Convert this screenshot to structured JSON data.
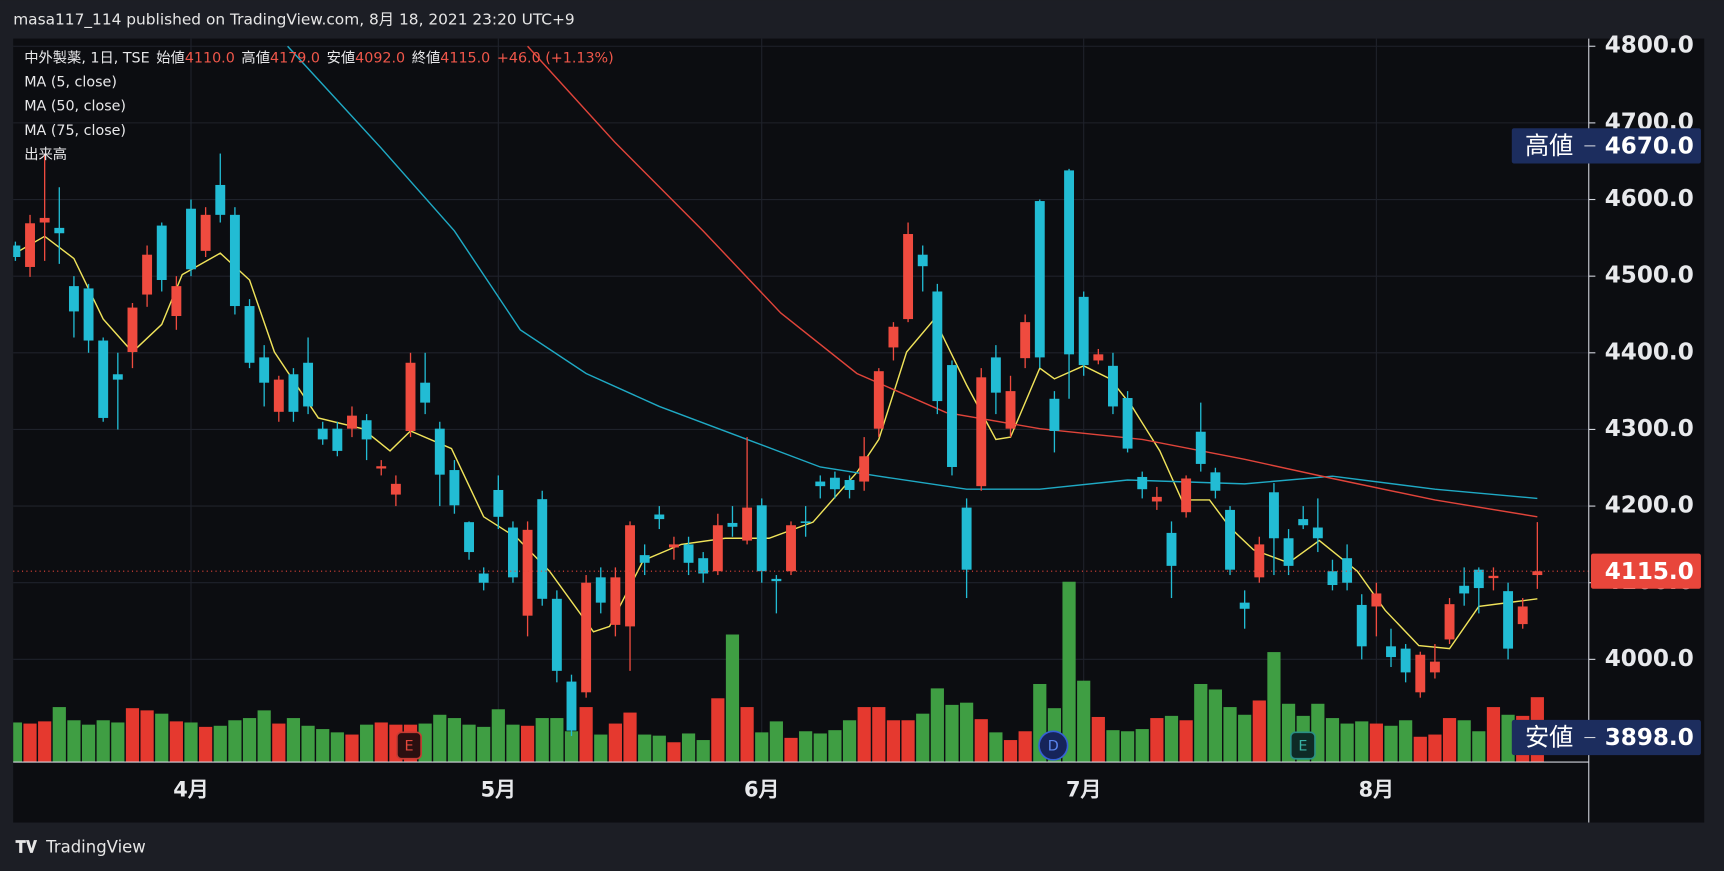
{
  "header": {
    "text": "masa117_114 published on TradingView.com, 8月 18, 2021 23:20 UTC+9"
  },
  "legend": {
    "symbol": "中外製薬, 1日, TSE",
    "open_label": "始値",
    "open": "4110.0",
    "high_label": "高値",
    "high": "4179.0",
    "low_label": "安値",
    "low": "4092.0",
    "close_label": "終値",
    "close": "4115.0",
    "change": "+46.0 (+1.13%)"
  },
  "chart_data": {
    "type": "candlestick",
    "categories": [
      null,
      null,
      null,
      null,
      null,
      null,
      null,
      null,
      null,
      null,
      null,
      null,
      "4月",
      null,
      null,
      null,
      null,
      null,
      null,
      null,
      null,
      null,
      null,
      null,
      null,
      null,
      null,
      null,
      null,
      null,
      null,
      null,
      null,
      "5月",
      null,
      null,
      null,
      null,
      null,
      null,
      null,
      null,
      null,
      null,
      null,
      null,
      null,
      null,
      null,
      null,
      null,
      "6月",
      null,
      null,
      null,
      null,
      null,
      null,
      null,
      null,
      null,
      null,
      null,
      null,
      null,
      null,
      null,
      null,
      null,
      null,
      null,
      null,
      null,
      "7月",
      null,
      null,
      null,
      null,
      null,
      null,
      null,
      null,
      null,
      null,
      null,
      null,
      null,
      null,
      null,
      null,
      null,
      null,
      null,
      "8月",
      null,
      null,
      null,
      null,
      null,
      null,
      null,
      null,
      null,
      null,
      null
    ],
    "open": [
      4540,
      4512,
      4570,
      4563,
      4487,
      4484,
      4416,
      4372,
      4401,
      4476,
      4566,
      4448,
      4588,
      4533,
      4619,
      4580,
      4461,
      4394,
      4323,
      4372,
      4387,
      4301,
      4301,
      4301,
      4312,
      4249,
      4215,
      4298,
      4361,
      4301,
      4247,
      4179,
      4112,
      4221,
      4172,
      4057,
      4209,
      4079,
      3971,
      3957,
      4107,
      4045,
      4043,
      4136,
      4189,
      4146,
      4150,
      4132,
      4115,
      4178,
      4155,
      4201,
      4105,
      4115,
      4180,
      4232,
      4237,
      4234,
      4232,
      4301,
      4407,
      4444,
      4528,
      4480,
      4384,
      4198,
      4226,
      4394,
      4301,
      4393,
      4598,
      4340,
      4638,
      4473,
      4390,
      4383,
      4341,
      4238,
      4206,
      4165,
      4192,
      4297,
      4244,
      4195,
      4074,
      4107,
      4218,
      4158,
      4183,
      4172,
      4115,
      4132,
      4071,
      4069,
      4017,
      4014,
      3957,
      3983,
      4026,
      4096,
      4117,
      4106,
      4089,
      4046,
      4110
    ],
    "high": [
      4545,
      4580,
      4660,
      4616,
      4500,
      4490,
      4420,
      4400,
      4465,
      4540,
      4570,
      4500,
      4600,
      4590,
      4660,
      4590,
      4470,
      4410,
      4370,
      4380,
      4420,
      4310,
      4310,
      4330,
      4320,
      4260,
      4240,
      4400,
      4400,
      4310,
      4260,
      4180,
      4120,
      4240,
      4180,
      4180,
      4220,
      4090,
      3980,
      4110,
      4120,
      4120,
      4180,
      4150,
      4200,
      4160,
      4160,
      4140,
      4190,
      4200,
      4290,
      4210,
      4110,
      4180,
      4200,
      4240,
      4245,
      4240,
      4290,
      4380,
      4440,
      4570,
      4540,
      4490,
      4390,
      4210,
      4380,
      4410,
      4370,
      4450,
      4600,
      4350,
      4640,
      4480,
      4405,
      4400,
      4350,
      4245,
      4225,
      4180,
      4240,
      4335,
      4250,
      4200,
      4090,
      4160,
      4230,
      4170,
      4200,
      4210,
      4130,
      4150,
      4085,
      4100,
      4040,
      4020,
      4010,
      4020,
      4080,
      4120,
      4120,
      4120,
      4100,
      4080,
      4179
    ],
    "low": [
      4520,
      4499,
      4520,
      4516,
      4420,
      4400,
      4310,
      4300,
      4380,
      4460,
      4480,
      4430,
      4500,
      4525,
      4570,
      4450,
      4380,
      4330,
      4310,
      4310,
      4320,
      4280,
      4265,
      4290,
      4260,
      4240,
      4200,
      4290,
      4320,
      4200,
      4190,
      4130,
      4090,
      4170,
      4100,
      4030,
      4070,
      3970,
      3900,
      3950,
      4060,
      4030,
      3985,
      4110,
      4170,
      4130,
      4110,
      4100,
      4110,
      4160,
      4150,
      4100,
      4060,
      4110,
      4160,
      4210,
      4210,
      4210,
      4220,
      4290,
      4390,
      4440,
      4480,
      4320,
      4240,
      4080,
      4220,
      4320,
      4290,
      4380,
      4380,
      4270,
      4340,
      4370,
      4385,
      4320,
      4270,
      4210,
      4195,
      4080,
      4185,
      4245,
      4210,
      4110,
      4040,
      4100,
      4110,
      4110,
      4170,
      4140,
      4090,
      4090,
      4000,
      4030,
      3990,
      3970,
      3950,
      3975,
      4020,
      4070,
      4060,
      4090,
      4000,
      4040,
      4092
    ],
    "close": [
      4525,
      4569,
      4576,
      4556,
      4454,
      4416,
      4315,
      4365,
      4459,
      4528,
      4495,
      4487,
      4509,
      4580,
      4580,
      4461,
      4387,
      4361,
      4365,
      4323,
      4330,
      4287,
      4272,
      4318,
      4287,
      4252,
      4229,
      4387,
      4335,
      4241,
      4201,
      4140,
      4100,
      4186,
      4107,
      4169,
      4079,
      3985,
      3907,
      4100,
      4074,
      4107,
      4175,
      4126,
      4183,
      4150,
      4126,
      4112,
      4175,
      4173,
      4198,
      4115,
      4102,
      4175,
      4178,
      4226,
      4222,
      4221,
      4265,
      4376,
      4434,
      4555,
      4513,
      4337,
      4251,
      4117,
      4368,
      4348,
      4350,
      4440,
      4394,
      4298,
      4398,
      4384,
      4398,
      4330,
      4275,
      4222,
      4212,
      4122,
      4236,
      4255,
      4220,
      4117,
      4066,
      4150,
      4158,
      4122,
      4175,
      4158,
      4097,
      4100,
      4017,
      4086,
      4003,
      3983,
      4006,
      3997,
      4072,
      4086,
      4093,
      4109,
      4014,
      4069,
      4115
    ],
    "up_color": "#ef4b3f",
    "down_color": "#22bcd4",
    "volume": {
      "name": "出来高",
      "values": [
        36,
        35,
        37,
        50,
        38,
        34,
        38,
        36,
        49,
        47,
        44,
        37,
        36,
        32,
        33,
        38,
        40,
        47,
        35,
        40,
        33,
        30,
        27,
        25,
        34,
        36,
        34,
        34,
        35,
        43,
        40,
        34,
        32,
        48,
        34,
        33,
        40,
        40,
        28,
        50,
        25,
        35,
        45,
        25,
        24,
        18,
        26,
        20,
        58,
        116,
        50,
        27,
        37,
        22,
        28,
        26,
        29,
        38,
        50,
        50,
        38,
        38,
        44,
        67,
        52,
        54,
        39,
        27,
        20,
        28,
        71,
        49,
        164,
        74,
        41,
        29,
        28,
        30,
        40,
        42,
        38,
        71,
        66,
        50,
        43,
        56,
        100,
        53,
        42,
        53,
        40,
        35,
        37,
        35,
        33,
        38,
        23,
        25,
        40,
        38,
        28,
        50,
        43,
        42,
        59
      ],
      "lim": [
        0,
        200
      ],
      "up_color": "#e5392f",
      "down_color": "#3f9e43"
    },
    "series": [
      {
        "name": "MA (5, close)",
        "color": "#f0e35a",
        "x": [
          0,
          2,
          4,
          6,
          8,
          10,
          11.4,
          14,
          16,
          17.7,
          20.7,
          23.7,
          25.6,
          27,
          29.8,
          32,
          34.3,
          36.5,
          39.5,
          40.6,
          42.9,
          45.5,
          48.5,
          51.5,
          54.5,
          57.5,
          59,
          60.9,
          62.8,
          65,
          67,
          68,
          70,
          71,
          73,
          74.8,
          76.3,
          78.2,
          79.7,
          81.6,
          83,
          84.6,
          87,
          89.1,
          91.7,
          93.6,
          95.9,
          98,
          100,
          102,
          104
        ],
        "values": [
          4530,
          4552,
          4523,
          4444,
          4401,
          4437,
          4502,
          4530,
          4495,
          4401,
          4315,
          4301,
          4272,
          4298,
          4275,
          4186,
          4158,
          4115,
          4036,
          4043,
          4129,
          4150,
          4158,
          4158,
          4179,
          4244,
          4287,
          4401,
          4444,
          4358,
          4287,
          4290,
          4380,
          4366,
          4383,
          4366,
          4330,
          4272,
          4208,
          4208,
          4172,
          4143,
          4126,
          4155,
          4115,
          4064,
          4018,
          4014,
          4069,
          4074,
          4079
        ]
      },
      {
        "name": "MA (50, close)",
        "color": "#1fa9c4",
        "x": [
          18.6,
          25,
          30,
          34.5,
          39,
          44,
          50,
          55,
          59,
          65,
          70,
          76,
          84,
          90,
          97,
          104
        ],
        "values": [
          4800,
          4667,
          4559,
          4430,
          4373,
          4330,
          4287,
          4251,
          4239,
          4222,
          4222,
          4234,
          4229,
          4239,
          4222,
          4210
        ]
      },
      {
        "name": "MA (75, close)",
        "color": "#e0443a",
        "x": [
          35,
          41,
          47,
          52.3,
          57.5,
          63.6,
          70,
          77,
          84,
          90,
          97,
          104
        ],
        "values": [
          4800,
          4674,
          4559,
          4452,
          4373,
          4322,
          4301,
          4287,
          4261,
          4236,
          4208,
          4186
        ]
      }
    ],
    "ylim": [
      3866,
      4810
    ],
    "yticks": [
      {
        "value": 4000,
        "label": "4000.0"
      },
      {
        "value": 4100,
        "label": "4100.0"
      },
      {
        "value": 4200,
        "label": "4200.0"
      },
      {
        "value": 4300,
        "label": "4300.0"
      },
      {
        "value": 4400,
        "label": "4400.0"
      },
      {
        "value": 4500,
        "label": "4500.0"
      },
      {
        "value": 4600,
        "label": "4600.0"
      },
      {
        "value": 4700,
        "label": "4700.0"
      },
      {
        "value": 4800,
        "label": "4800.0"
      }
    ],
    "grid": true,
    "price_tags": [
      {
        "name": "高値",
        "value": 4670,
        "label": "4670.0",
        "color": "#1c2d5e"
      },
      {
        "name": "安値",
        "value": 3898,
        "label": "3898.0",
        "color": "#1c2d5e"
      },
      {
        "value": 4115,
        "label": "4115.0",
        "color": "#e8463b"
      }
    ],
    "events": [
      "E",
      "D",
      "E"
    ]
  },
  "footer": {
    "brand": "TradingView"
  }
}
